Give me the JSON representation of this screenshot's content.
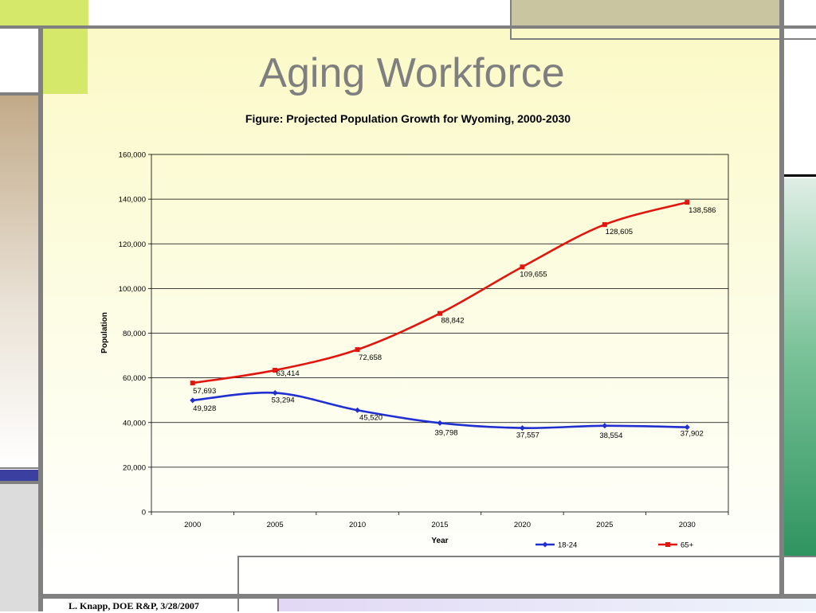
{
  "slide": {
    "title": "Aging Workforce",
    "footer": "L. Knapp, DOE R&P, 3/28/2007"
  },
  "colors": {
    "accent_green_light": "#d5e86a",
    "accent_olive": "#c8c5a0",
    "accent_tan": "#c2aa88",
    "accent_navy": "#3a3fa0",
    "accent_green": "#2f9460",
    "series_18_24": "#1f2fd0",
    "series_65_plus": "#e0160f"
  },
  "chart_data": {
    "type": "line",
    "title": "Figure: Projected Population Growth for Wyoming, 2000-2030",
    "xlabel": "Year",
    "ylabel": "Population",
    "categories": [
      "2000",
      "2005",
      "2010",
      "2015",
      "2020",
      "2025",
      "2030"
    ],
    "ylim": [
      0,
      160000
    ],
    "yticks": [
      "0",
      "20,000",
      "40,000",
      "60,000",
      "80,000",
      "100,000",
      "120,000",
      "140,000",
      "160,000"
    ],
    "grid": "horizontal",
    "legend": "bottom",
    "series": [
      {
        "name": "18-24",
        "values": [
          49928,
          53294,
          45520,
          39798,
          37557,
          38554,
          37902
        ],
        "labels": [
          "49,928",
          "53,294",
          "45,520",
          "39,798",
          "37,557",
          "38,554",
          "37,902"
        ],
        "color": "#1f2fd0"
      },
      {
        "name": "65+",
        "values": [
          57693,
          63414,
          72658,
          88842,
          109655,
          128605,
          138586
        ],
        "labels": [
          "57,693",
          "63,414",
          "72,658",
          "88,842",
          "109,655",
          "128,605",
          "138,586"
        ],
        "color": "#e0160f"
      }
    ]
  }
}
